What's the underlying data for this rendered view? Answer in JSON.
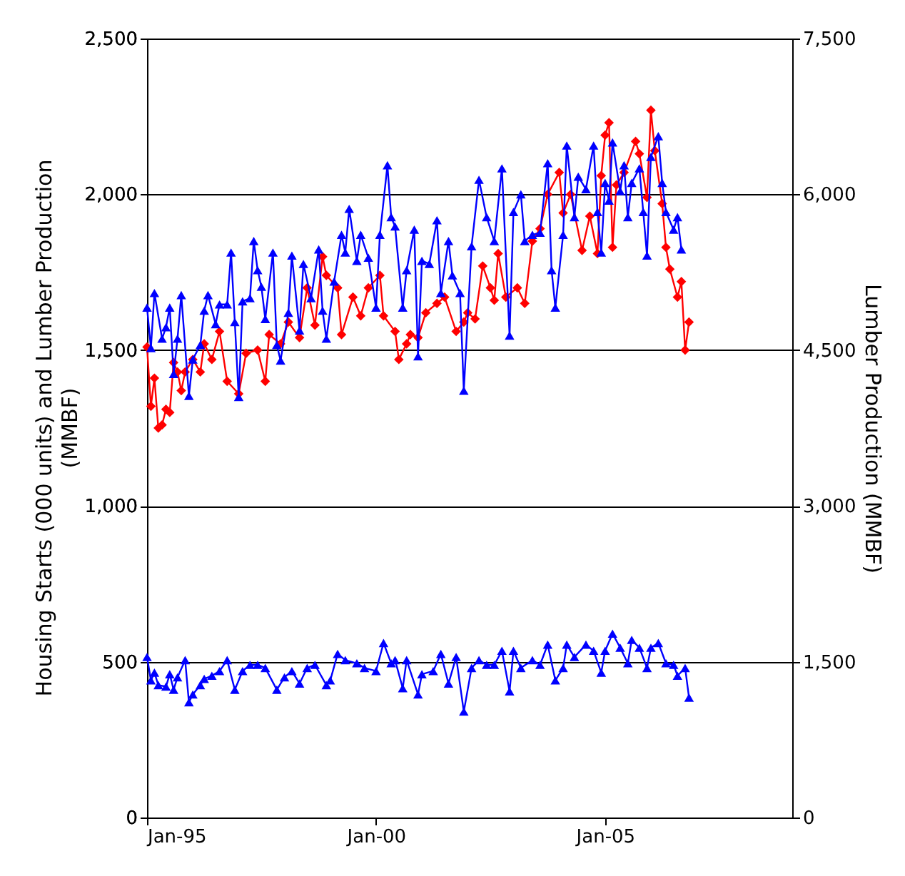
{
  "chart_data": {
    "type": "line",
    "ylabel": "Housing Starts (000 units) and Lumber Production (MMBF)",
    "y2label": "Lumber Production (MMBF)",
    "xlim": [
      "1995-01",
      "2009-02"
    ],
    "xticks": [
      {
        "value": "1995-01",
        "label": "Jan-95"
      },
      {
        "value": "2000-01",
        "label": "Jan-00"
      },
      {
        "value": "2005-01",
        "label": "Jan-05"
      }
    ],
    "ylim": [
      0,
      2500
    ],
    "yticks": [
      0,
      500,
      {
        "value": 1000,
        "label": "1,000"
      },
      {
        "value": 1500,
        "label": "1,500"
      },
      {
        "value": 2000,
        "label": "2,000"
      },
      {
        "value": 2500,
        "label": "2,500"
      }
    ],
    "y2lim": [
      0,
      7500
    ],
    "y2ticks": [
      0,
      {
        "value": 1500,
        "label": "1,500"
      },
      {
        "value": 3000,
        "label": "3,000"
      },
      {
        "value": 4500,
        "label": "4,500"
      },
      {
        "value": 6000,
        "label": "6,000"
      },
      {
        "value": 7500,
        "label": "7,500"
      }
    ],
    "grid": "y",
    "line_style": "solid",
    "series": [
      {
        "color": "#ff0000",
        "marker": "diamond",
        "x": [
          "1995-01",
          "1995-02",
          "1995-03",
          "1995-04",
          "1995-05",
          "1995-06",
          "1995-07",
          "1995-08",
          "1995-09",
          "1995-10",
          "1995-11",
          "1996-01",
          "1996-03",
          "1996-04",
          "1996-06",
          "1996-08",
          "1996-10",
          "1997-01",
          "1997-03",
          "1997-06",
          "1997-08",
          "1997-09",
          "1997-12",
          "1998-02",
          "1998-05",
          "1998-07",
          "1998-09",
          "1998-11",
          "1998-12",
          "1999-03",
          "1999-04",
          "1999-07",
          "1999-09",
          "1999-11",
          "2000-02",
          "2000-03",
          "2000-06",
          "2000-07",
          "2000-09",
          "2000-10",
          "2000-12",
          "2001-02",
          "2001-05",
          "2001-07",
          "2001-10",
          "2001-12",
          "2002-01",
          "2002-03",
          "2002-05",
          "2002-07",
          "2002-08",
          "2002-09",
          "2002-11",
          "2003-02",
          "2003-04",
          "2003-06",
          "2003-08",
          "2003-10",
          "2004-01",
          "2004-02",
          "2004-04",
          "2004-07",
          "2004-09",
          "2004-11",
          "2004-12",
          "2005-01",
          "2005-02",
          "2005-03",
          "2005-04",
          "2005-06",
          "2005-09",
          "2005-10",
          "2005-12",
          "2006-01",
          "2006-02",
          "2006-04",
          "2006-05",
          "2006-06",
          "2006-08",
          "2006-09",
          "2006-10",
          "2006-11"
        ],
        "values": [
          1510,
          1320,
          1410,
          1250,
          1260,
          1310,
          1300,
          1460,
          1430,
          1370,
          1430,
          1470,
          1430,
          1520,
          1470,
          1560,
          1400,
          1360,
          1490,
          1500,
          1400,
          1550,
          1520,
          1590,
          1540,
          1700,
          1580,
          1800,
          1740,
          1700,
          1550,
          1670,
          1610,
          1700,
          1740,
          1610,
          1560,
          1470,
          1520,
          1550,
          1540,
          1620,
          1650,
          1670,
          1560,
          1590,
          1620,
          1600,
          1770,
          1700,
          1660,
          1810,
          1670,
          1700,
          1650,
          1850,
          1890,
          2000,
          2070,
          1940,
          2000,
          1820,
          1930,
          1810,
          2060,
          2190,
          2230,
          1830,
          2030,
          2070,
          2170,
          2130,
          1990,
          2270,
          2140,
          1970,
          1830,
          1760,
          1670,
          1720,
          1500,
          1590
        ]
      },
      {
        "color": "#0000ff",
        "marker": "triangle",
        "axis": "y2",
        "x": [
          "1995-01",
          "1995-02",
          "1995-03",
          "1995-05",
          "1995-06",
          "1995-07",
          "1995-08",
          "1995-09",
          "1995-10",
          "1995-12",
          "1996-01",
          "1996-03",
          "1996-04",
          "1996-05",
          "1996-07",
          "1996-08",
          "1996-10",
          "1996-11",
          "1996-12",
          "1997-01",
          "1997-02",
          "1997-04",
          "1997-05",
          "1997-06",
          "1997-07",
          "1997-08",
          "1997-10",
          "1997-11",
          "1997-12",
          "1998-02",
          "1998-03",
          "1998-05",
          "1998-06",
          "1998-08",
          "1998-10",
          "1998-11",
          "1998-12",
          "1999-02",
          "1999-04",
          "1999-05",
          "1999-06",
          "1999-08",
          "1999-09",
          "1999-11",
          "2000-01",
          "2000-02",
          "2000-04",
          "2000-05",
          "2000-06",
          "2000-08",
          "2000-09",
          "2000-11",
          "2000-12",
          "2001-01",
          "2001-03",
          "2001-05",
          "2001-06",
          "2001-08",
          "2001-09",
          "2001-11",
          "2001-12",
          "2002-02",
          "2002-04",
          "2002-06",
          "2002-08",
          "2002-10",
          "2002-12",
          "2003-01",
          "2003-03",
          "2003-04",
          "2003-06",
          "2003-08",
          "2003-10",
          "2003-11",
          "2003-12",
          "2004-02",
          "2004-03",
          "2004-05",
          "2004-06",
          "2004-08",
          "2004-10",
          "2004-11",
          "2004-12",
          "2005-01",
          "2005-02",
          "2005-03",
          "2005-05",
          "2005-06",
          "2005-07",
          "2005-08",
          "2005-10",
          "2005-11",
          "2005-12",
          "2006-01",
          "2006-03",
          "2006-04",
          "2006-05",
          "2006-07",
          "2006-08",
          "2006-09"
        ],
        "values": [
          4910,
          4520,
          5050,
          4610,
          4720,
          4910,
          4270,
          4610,
          5030,
          4060,
          4410,
          4550,
          4880,
          5030,
          4750,
          4940,
          4940,
          5440,
          4770,
          4050,
          4970,
          5000,
          5550,
          5270,
          5110,
          4800,
          5440,
          4550,
          4400,
          4860,
          5410,
          4690,
          5330,
          5000,
          5470,
          4880,
          4610,
          5160,
          5610,
          5440,
          5860,
          5360,
          5610,
          5390,
          4910,
          5610,
          6280,
          5780,
          5690,
          4910,
          5270,
          5660,
          4440,
          5360,
          5330,
          5750,
          5050,
          5550,
          5220,
          5050,
          4110,
          5500,
          6140,
          5780,
          5550,
          6250,
          4640,
          5830,
          6000,
          5550,
          5610,
          5630,
          6300,
          5270,
          4910,
          5610,
          6470,
          5780,
          6170,
          6050,
          6470,
          5830,
          5440,
          6110,
          5940,
          6500,
          6030,
          6280,
          5780,
          6110,
          6250,
          5830,
          5410,
          6360,
          6560,
          6110,
          5830,
          5660,
          5780,
          5470
        ]
      },
      {
        "color": "#0000ff",
        "marker": "triangle",
        "x": [
          "1995-01",
          "1995-02",
          "1995-03",
          "1995-04",
          "1995-06",
          "1995-07",
          "1995-08",
          "1995-09",
          "1995-11",
          "1995-12",
          "1996-01",
          "1996-03",
          "1996-04",
          "1996-06",
          "1996-08",
          "1996-10",
          "1996-12",
          "1997-02",
          "1997-04",
          "1997-06",
          "1997-08",
          "1997-11",
          "1998-01",
          "1998-03",
          "1998-05",
          "1998-07",
          "1998-09",
          "1998-12",
          "1999-01",
          "1999-03",
          "1999-05",
          "1999-08",
          "1999-10",
          "2000-01",
          "2000-03",
          "2000-05",
          "2000-06",
          "2000-08",
          "2000-09",
          "2000-12",
          "2001-01",
          "2001-04",
          "2001-06",
          "2001-08",
          "2001-10",
          "2001-12",
          "2002-02",
          "2002-04",
          "2002-06",
          "2002-08",
          "2002-10",
          "2002-12",
          "2003-01",
          "2003-03",
          "2003-06",
          "2003-08",
          "2003-10",
          "2003-12",
          "2004-02",
          "2004-03",
          "2004-05",
          "2004-08",
          "2004-10",
          "2004-12",
          "2005-01",
          "2005-03",
          "2005-05",
          "2005-07",
          "2005-08",
          "2005-10",
          "2005-12",
          "2006-01",
          "2006-03",
          "2006-05",
          "2006-07",
          "2006-08",
          "2006-10",
          "2006-11"
        ],
        "values": [
          515,
          440,
          465,
          425,
          420,
          460,
          410,
          450,
          505,
          370,
          395,
          425,
          445,
          455,
          470,
          505,
          410,
          470,
          490,
          490,
          480,
          410,
          450,
          470,
          430,
          480,
          490,
          425,
          440,
          525,
          505,
          495,
          480,
          470,
          560,
          495,
          505,
          415,
          505,
          395,
          460,
          470,
          525,
          430,
          515,
          340,
          480,
          505,
          490,
          490,
          535,
          405,
          535,
          480,
          505,
          490,
          555,
          440,
          480,
          555,
          515,
          555,
          535,
          465,
          535,
          590,
          545,
          495,
          570,
          545,
          480,
          545,
          560,
          495,
          490,
          455,
          480,
          385
        ]
      }
    ]
  }
}
